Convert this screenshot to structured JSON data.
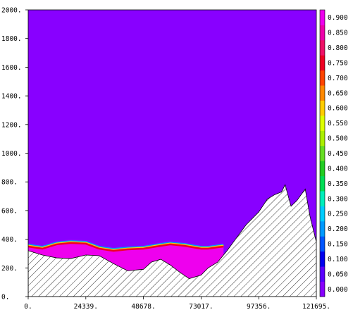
{
  "chart_data": {
    "type": "area",
    "title": "",
    "xlabel": "",
    "ylabel": "",
    "xlim": [
      0,
      121695
    ],
    "ylim": [
      0,
      2000
    ],
    "x_ticks": [
      "0.",
      "24339.",
      "48678.",
      "73017.",
      "97356.",
      "121695."
    ],
    "x_tick_values": [
      0,
      24339,
      48678,
      73017,
      97356,
      121695
    ],
    "y_ticks": [
      "0.",
      "200.",
      "400.",
      "600.",
      "800.",
      "1000.",
      "1200.",
      "1400.",
      "1600.",
      "1800.",
      "2000."
    ],
    "y_tick_values": [
      0,
      200,
      400,
      600,
      800,
      1000,
      1200,
      1400,
      1600,
      1800,
      2000
    ],
    "background_color": "#8800ff",
    "colorbar": {
      "labels": [
        "0.000",
        "0.050",
        "0.100",
        "0.150",
        "0.200",
        "0.250",
        "0.300",
        "0.350",
        "0.400",
        "0.450",
        "0.500",
        "0.550",
        "0.600",
        "0.650",
        "0.700",
        "0.750",
        "0.800",
        "0.850",
        "0.900"
      ],
      "colors": [
        "#8800ff",
        "#5a00ff",
        "#0000ee",
        "#0055ff",
        "#0099ff",
        "#00ccff",
        "#00eebb",
        "#00dd55",
        "#22cc22",
        "#66dd22",
        "#aaee00",
        "#ddff00",
        "#ffcc00",
        "#ff8800",
        "#ff4400",
        "#ee0022",
        "#ee1166",
        "#ee00aa",
        "#ee00ee"
      ]
    },
    "topography": {
      "x": [
        0,
        6000,
        12000,
        18000,
        24339,
        30000,
        36000,
        42000,
        48678,
        52000,
        56000,
        60000,
        64000,
        68000,
        73017,
        76000,
        80000,
        84000,
        88000,
        92000,
        97356,
        101000,
        104000,
        107000,
        108500,
        111000,
        113500,
        117000,
        119000,
        121695
      ],
      "y": [
        320,
        290,
        270,
        265,
        290,
        285,
        230,
        180,
        190,
        240,
        260,
        220,
        170,
        125,
        150,
        200,
        240,
        320,
        410,
        500,
        590,
        680,
        710,
        730,
        780,
        630,
        670,
        750,
        560,
        380
      ]
    },
    "magenta_layer": {
      "x": [
        0,
        6000,
        12000,
        18000,
        24339,
        30000,
        36000,
        42000,
        48678,
        54000,
        60000,
        66000,
        73017,
        76000,
        80000,
        82500
      ],
      "y": [
        345,
        330,
        360,
        370,
        365,
        330,
        315,
        325,
        330,
        345,
        360,
        350,
        330,
        330,
        340,
        345
      ]
    }
  }
}
